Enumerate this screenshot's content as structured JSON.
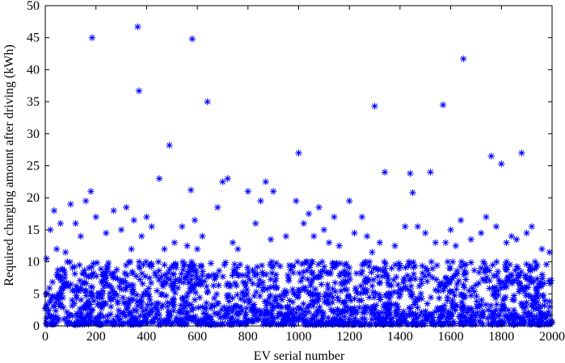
{
  "chart_data": {
    "type": "scatter",
    "title": "",
    "xlabel": "EV serial number",
    "ylabel": "Required charging amount after driving (kWh)",
    "xlim": [
      0,
      2000
    ],
    "ylim": [
      0,
      50
    ],
    "xticks": [
      0,
      200,
      400,
      600,
      800,
      1000,
      1200,
      1400,
      1600,
      1800,
      2000
    ],
    "yticks": [
      0,
      5,
      10,
      15,
      20,
      25,
      30,
      35,
      40,
      45,
      50
    ],
    "grid": false,
    "legend": "none",
    "marker": "asterisk",
    "marker_color": "#0000ff",
    "series": [
      {
        "x": [
          5,
          20,
          35,
          45,
          60,
          80,
          100,
          120,
          140,
          160,
          180,
          185,
          200,
          240,
          270,
          300,
          320,
          340,
          350,
          365,
          370,
          380,
          400,
          420,
          450,
          470,
          490,
          510,
          540,
          560,
          575,
          580,
          590,
          600,
          620,
          640,
          680,
          700,
          720,
          740,
          760,
          800,
          830,
          850,
          870,
          890,
          900,
          950,
          990,
          1000,
          1020,
          1040,
          1060,
          1080,
          1100,
          1120,
          1140,
          1160,
          1200,
          1220,
          1250,
          1270,
          1290,
          1300,
          1320,
          1340,
          1380,
          1420,
          1440,
          1450,
          1470,
          1500,
          1520,
          1540,
          1570,
          1580,
          1600,
          1620,
          1640,
          1650,
          1680,
          1720,
          1740,
          1760,
          1780,
          1800,
          1820,
          1840,
          1860,
          1880,
          1900,
          1920,
          1960,
          1990
        ],
        "values": [
          10.5,
          15.0,
          18.0,
          12.0,
          16.0,
          11.5,
          19.0,
          16.0,
          14.0,
          19.5,
          21.0,
          45.0,
          17.0,
          14.5,
          18.0,
          15.0,
          18.5,
          12.0,
          16.5,
          46.7,
          36.7,
          14.0,
          17.0,
          15.5,
          23.0,
          12.0,
          28.2,
          13.0,
          15.5,
          12.5,
          21.2,
          44.8,
          16.5,
          12.0,
          14.0,
          35.0,
          18.5,
          22.5,
          23.0,
          13.0,
          12.0,
          21.0,
          16.0,
          19.5,
          22.5,
          13.5,
          21.0,
          14.0,
          19.5,
          27.0,
          16.0,
          17.5,
          14.0,
          18.5,
          15.0,
          13.0,
          17.0,
          12.5,
          19.5,
          14.5,
          17.0,
          14.0,
          11.5,
          34.3,
          13.0,
          24.0,
          12.5,
          15.5,
          23.8,
          20.8,
          15.5,
          14.5,
          24.0,
          13.0,
          34.5,
          13.0,
          15.0,
          12.5,
          16.5,
          41.7,
          13.5,
          14.5,
          17.0,
          26.5,
          15.5,
          25.3,
          13.0,
          14.0,
          13.5,
          27.0,
          14.5,
          15.5,
          12.0,
          11.5
        ]
      }
    ],
    "dense_band": {
      "ymax": 10,
      "count": 1800
    }
  }
}
